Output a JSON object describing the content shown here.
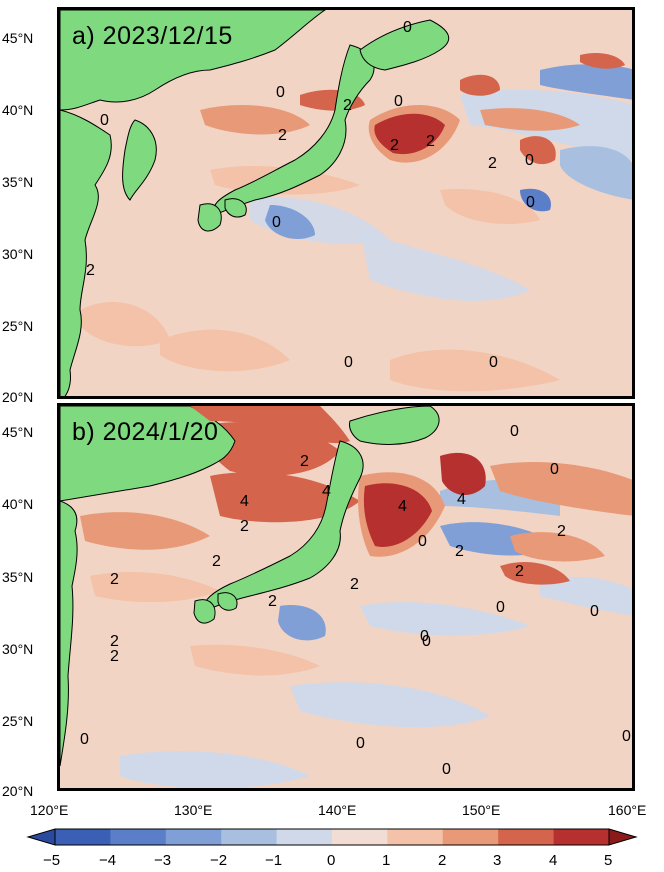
{
  "panels": [
    {
      "label": "a) 2023/12/15"
    },
    {
      "label": "b) 2024/1/20"
    }
  ],
  "y_axis": {
    "ticks": [
      "45°N",
      "40°N",
      "35°N",
      "30°N",
      "25°N",
      "20°N"
    ]
  },
  "x_axis": {
    "ticks": [
      "120°E",
      "130°E",
      "140°E",
      "150°E",
      "160°E"
    ]
  },
  "colorbar": {
    "ticks": [
      "−5",
      "−4",
      "−3",
      "−2",
      "−1",
      "0",
      "1",
      "2",
      "3",
      "4",
      "5"
    ],
    "colors": [
      "#3a5fb4",
      "#5a7fc8",
      "#7f9fd6",
      "#a8bfe0",
      "#cfd9ea",
      "#f1ddd3",
      "#f3c2a8",
      "#e89a78",
      "#d4654c",
      "#b5302f"
    ]
  },
  "contour_labels_a": [
    "0",
    "2",
    "0",
    "2",
    "0",
    "0",
    "2",
    "2",
    "0",
    "2",
    "0",
    "0",
    "0",
    "0",
    "2"
  ],
  "contour_labels_b": [
    "0",
    "2",
    "4",
    "2",
    "2",
    "2",
    "4",
    "2",
    "4",
    "2",
    "4",
    "2",
    "0",
    "0",
    "2",
    "2",
    "2",
    "0",
    "0",
    "0",
    "0",
    "0",
    "0",
    "2",
    "0",
    "0"
  ],
  "colors": {
    "land": "#7fd97f",
    "ocean_base": "#f2d2c2"
  }
}
